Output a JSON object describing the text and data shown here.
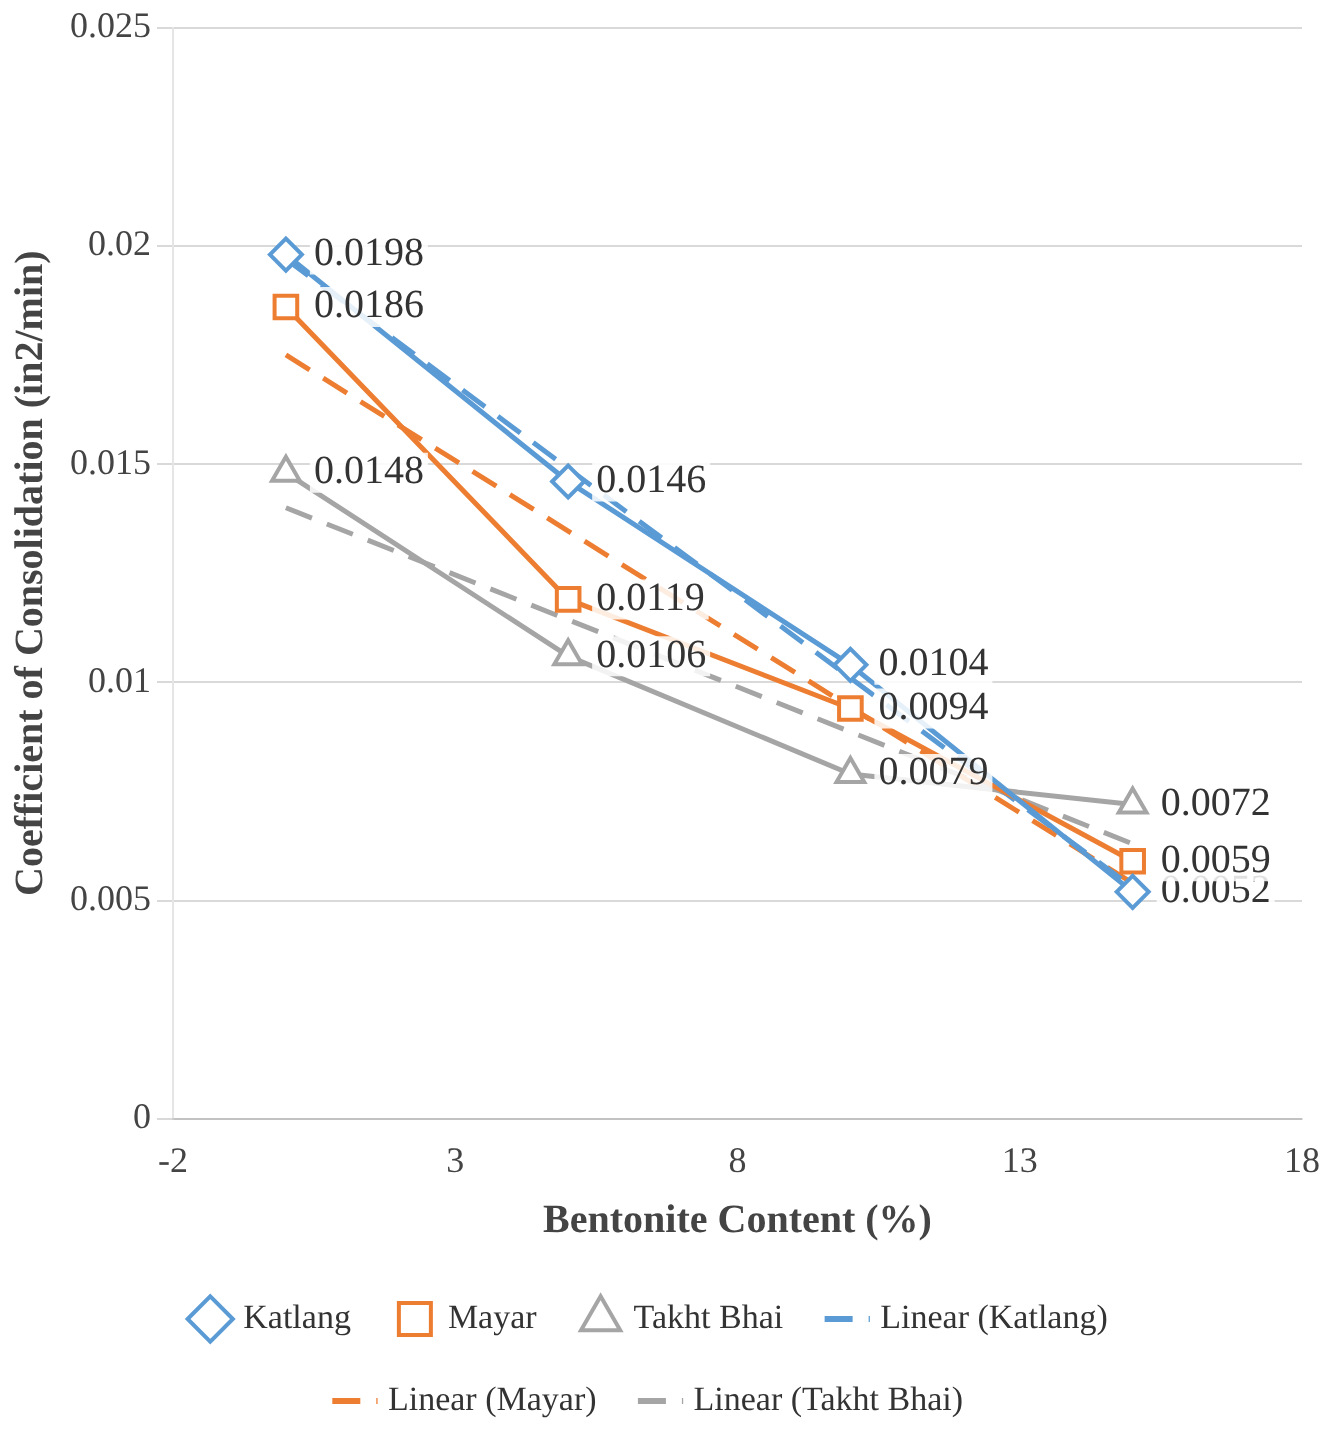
{
  "chart_data": {
    "type": "line",
    "xlabel": "Bentonite Content (%)",
    "ylabel": "Coefficient of Consolidation (in2/min)",
    "xlim": [
      -2,
      18
    ],
    "xticks": [
      -2,
      3,
      8,
      13,
      18
    ],
    "ylim": [
      0,
      0.025
    ],
    "yticks": [
      0,
      0.005,
      0.01,
      0.015,
      0.02,
      0.025
    ],
    "grid": "y",
    "legend": "bottom",
    "series": [
      {
        "name": "Katlang",
        "color": "#5b9bd5",
        "marker": "diamond",
        "x": [
          0,
          5,
          10,
          15
        ],
        "values": [
          0.0198,
          0.0146,
          0.0104,
          0.0052
        ],
        "value_labels": [
          "0.0198",
          "0.0146",
          "0.0104",
          "0.0052"
        ]
      },
      {
        "name": "Mayar",
        "color": "#ed7d31",
        "marker": "square",
        "x": [
          0,
          5,
          10,
          15
        ],
        "values": [
          0.0186,
          0.0119,
          0.0094,
          0.0059
        ],
        "value_labels": [
          "0.0186",
          "0.0119",
          "0.0094",
          "0.0059"
        ]
      },
      {
        "name": "Takht Bhai",
        "color": "#a5a5a5",
        "marker": "triangle",
        "x": [
          0,
          5,
          10,
          15
        ],
        "values": [
          0.0148,
          0.0106,
          0.0079,
          0.0072
        ],
        "value_labels": [
          "0.0148",
          "0.0106",
          "0.0079",
          "0.0072"
        ]
      },
      {
        "name": "Linear (Katlang)",
        "color": "#5b9bd5",
        "marker": "none",
        "line_style": "dashed",
        "x": [
          0,
          15
        ],
        "values": [
          0.0197,
          0.0053
        ]
      },
      {
        "name": "Linear (Mayar)",
        "color": "#ed7d31",
        "marker": "none",
        "line_style": "dashed",
        "x": [
          0,
          15
        ],
        "values": [
          0.0175,
          0.0054
        ]
      },
      {
        "name": "Linear (Takht Bhai)",
        "color": "#a5a5a5",
        "marker": "none",
        "line_style": "dashed",
        "x": [
          0,
          15
        ],
        "values": [
          0.014,
          0.0063
        ]
      }
    ]
  }
}
